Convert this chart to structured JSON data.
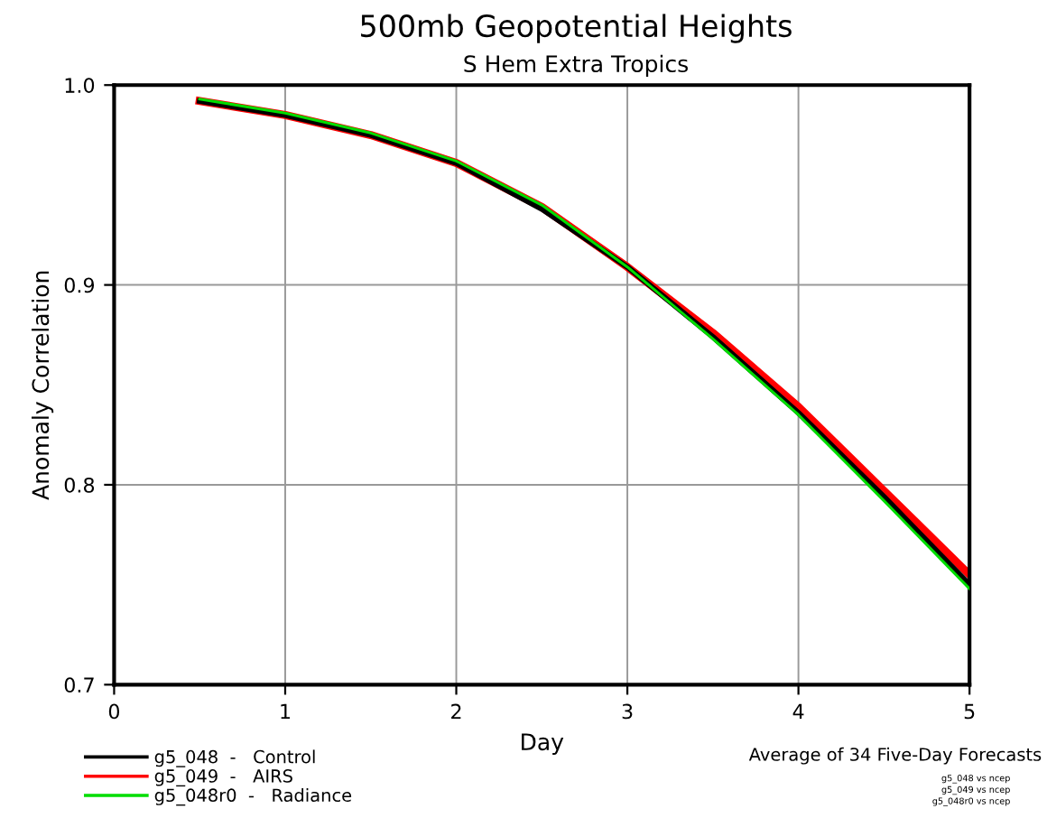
{
  "chart_data": {
    "type": "line",
    "title": "500mb Geopotential Heights",
    "subtitle": "S Hem Extra Tropics",
    "xlabel": "Day",
    "ylabel": "Anomaly Correlation",
    "x": [
      0.5,
      1,
      1.5,
      2,
      2.5,
      3,
      3.5,
      4,
      4.5,
      5
    ],
    "series": [
      {
        "name": "g5_048  -   Control",
        "color": "#000000",
        "values": [
          0.992,
          0.985,
          0.975,
          0.961,
          0.938,
          0.909,
          0.874,
          0.836,
          0.794,
          0.75
        ]
      },
      {
        "name": "g5_049  -   AIRS",
        "color": "#ff0000",
        "values": [
          0.992,
          0.985,
          0.975,
          0.961,
          0.939,
          0.909,
          0.876,
          0.839,
          0.797,
          0.755
        ]
      },
      {
        "name": "g5_048r0  -   Radiance",
        "color": "#00dd00",
        "values": [
          0.993,
          0.986,
          0.976,
          0.962,
          0.94,
          0.909,
          0.873,
          0.835,
          0.792,
          0.748
        ]
      }
    ],
    "xlim": [
      0,
      5
    ],
    "xticks": [
      0,
      1,
      2,
      3,
      4,
      5
    ],
    "ylim": [
      0.7,
      1.0
    ],
    "yticks": [
      {
        "value": 0.7,
        "label": "0.7"
      },
      {
        "value": 0.8,
        "label": "0.8"
      },
      {
        "value": 0.9,
        "label": "0.9"
      },
      {
        "value": 1.0,
        "label": "1.0"
      }
    ],
    "grid": true,
    "legend": "bottom left",
    "marker": "none",
    "line_style": "solid",
    "annotations": [
      "Average of 34 Five-Day Forecasts",
      "g5_048 vs ncep",
      "g5_049 vs ncep",
      "g5_048r0 vs ncep"
    ]
  }
}
